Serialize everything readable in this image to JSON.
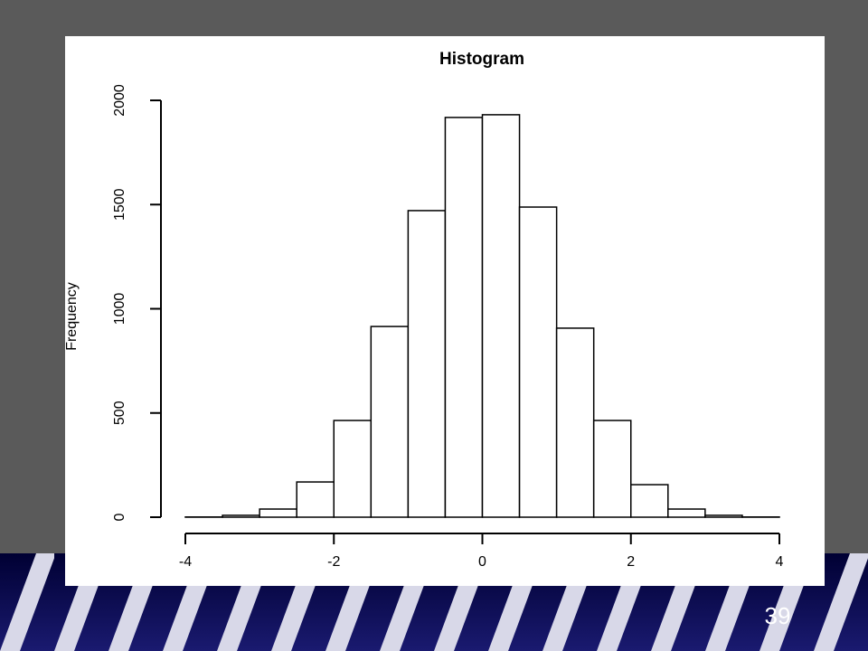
{
  "chart_data": {
    "type": "histogram",
    "title": "Histogram",
    "ylabel": "Frequency",
    "bins": [
      -4,
      -3.5,
      -3,
      -2.5,
      -2,
      -1.5,
      -1,
      -0.5,
      0,
      0.5,
      1,
      1.5,
      2,
      2.5,
      3,
      3.5,
      4
    ],
    "values": [
      1,
      9,
      39,
      169,
      464,
      915,
      1471,
      1918,
      1931,
      1488,
      907,
      464,
      156,
      39,
      9,
      1
    ],
    "color": "#ffffff",
    "xlim": [
      -4,
      4
    ],
    "xticks": [
      -4,
      -2,
      0,
      2,
      4
    ],
    "ylim": [
      0,
      2000
    ],
    "yticks": [
      0,
      500,
      1000,
      1500,
      2000
    ]
  },
  "slide_number": "39"
}
